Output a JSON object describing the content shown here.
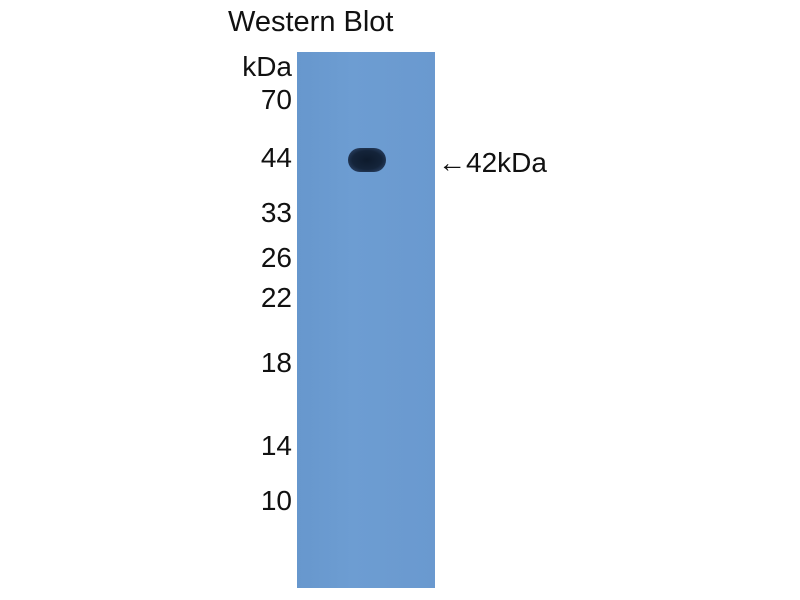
{
  "title": "Western Blot",
  "unit_label": "kDa",
  "markers": [
    "70",
    "44",
    "33",
    "26",
    "22",
    "18",
    "14",
    "10"
  ],
  "band_annotation": "←42kDa",
  "colors": {
    "membrane": "#6a9bd0",
    "band": "#14243a"
  }
}
